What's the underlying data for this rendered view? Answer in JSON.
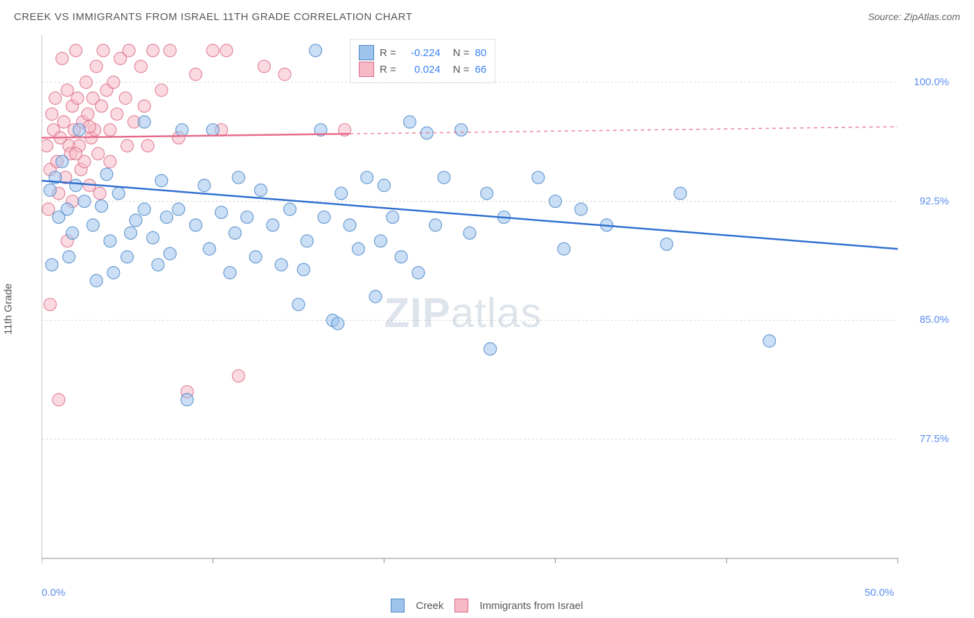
{
  "title": "CREEK VS IMMIGRANTS FROM ISRAEL 11TH GRADE CORRELATION CHART",
  "source_text": "Source: ZipAtlas.com",
  "ylabel": "11th Grade",
  "watermark": "ZIPatlas",
  "chart": {
    "type": "scatter",
    "xlim": [
      0,
      50
    ],
    "ylim": [
      70,
      103
    ],
    "x_tick_step": 10,
    "x_tick_labels": {
      "0": "0.0%",
      "50": "50.0%"
    },
    "y_ticks": [
      77.5,
      85.0,
      92.5,
      100.0
    ],
    "y_tick_labels": [
      "77.5%",
      "85.0%",
      "92.5%",
      "100.0%"
    ],
    "grid_color": "#d8d8d8",
    "axis_color": "#888888",
    "background_color": "#ffffff",
    "marker_radius": 9,
    "marker_opacity": 0.55,
    "series": [
      {
        "name": "Creek",
        "fill": "#9ec4ee",
        "stroke": "#4a84c4",
        "trend_color": "#2f6fd0",
        "trend_start_y": 93.8,
        "trend_end_y": 89.5,
        "trend_solid_until_x": 50,
        "legend": {
          "R": "-0.224",
          "N": "80"
        },
        "points": [
          [
            0.5,
            93.2
          ],
          [
            0.8,
            94.0
          ],
          [
            1.0,
            91.5
          ],
          [
            1.5,
            92.0
          ],
          [
            1.2,
            95.0
          ],
          [
            2.0,
            93.5
          ],
          [
            1.8,
            90.5
          ],
          [
            2.5,
            92.5
          ],
          [
            2.2,
            97.0
          ],
          [
            3.0,
            91.0
          ],
          [
            3.5,
            92.2
          ],
          [
            3.8,
            94.2
          ],
          [
            4.0,
            90.0
          ],
          [
            4.5,
            93.0
          ],
          [
            5.0,
            89.0
          ],
          [
            5.5,
            91.3
          ],
          [
            6.0,
            92.0
          ],
          [
            6.0,
            97.5
          ],
          [
            6.5,
            90.2
          ],
          [
            7.0,
            93.8
          ],
          [
            7.3,
            91.5
          ],
          [
            7.5,
            89.2
          ],
          [
            8.0,
            92.0
          ],
          [
            8.2,
            97.0
          ],
          [
            8.5,
            80.0
          ],
          [
            9.0,
            91.0
          ],
          [
            9.5,
            93.5
          ],
          [
            9.8,
            89.5
          ],
          [
            10.0,
            97.0
          ],
          [
            10.5,
            91.8
          ],
          [
            11.0,
            88.0
          ],
          [
            11.3,
            90.5
          ],
          [
            11.5,
            94.0
          ],
          [
            12.0,
            91.5
          ],
          [
            12.5,
            89.0
          ],
          [
            12.8,
            93.2
          ],
          [
            13.5,
            91.0
          ],
          [
            14.0,
            88.5
          ],
          [
            14.5,
            92.0
          ],
          [
            15.0,
            86.0
          ],
          [
            15.5,
            90.0
          ],
          [
            16.0,
            102.0
          ],
          [
            16.3,
            97.0
          ],
          [
            16.5,
            91.5
          ],
          [
            17.0,
            85.0
          ],
          [
            17.5,
            93.0
          ],
          [
            18.0,
            91.0
          ],
          [
            18.5,
            89.5
          ],
          [
            19.0,
            94.0
          ],
          [
            19.5,
            86.5
          ],
          [
            19.8,
            90.0
          ],
          [
            20.0,
            93.5
          ],
          [
            20.5,
            91.5
          ],
          [
            21.0,
            89.0
          ],
          [
            21.5,
            97.5
          ],
          [
            22.0,
            88.0
          ],
          [
            22.5,
            96.8
          ],
          [
            23.0,
            91.0
          ],
          [
            23.5,
            94.0
          ],
          [
            24.5,
            97.0
          ],
          [
            25.0,
            90.5
          ],
          [
            26.0,
            93.0
          ],
          [
            26.2,
            83.2
          ],
          [
            27.0,
            91.5
          ],
          [
            29.0,
            94.0
          ],
          [
            30.0,
            92.5
          ],
          [
            30.5,
            89.5
          ],
          [
            31.5,
            92.0
          ],
          [
            33.0,
            91.0
          ],
          [
            36.5,
            89.8
          ],
          [
            37.3,
            93.0
          ],
          [
            42.5,
            83.7
          ],
          [
            0.6,
            88.5
          ],
          [
            1.6,
            89.0
          ],
          [
            3.2,
            87.5
          ],
          [
            4.2,
            88.0
          ],
          [
            5.2,
            90.5
          ],
          [
            6.8,
            88.5
          ],
          [
            15.3,
            88.2
          ],
          [
            17.3,
            84.8
          ]
        ]
      },
      {
        "name": "Immigrants from Israel",
        "fill": "#f7b9c6",
        "stroke": "#d96b87",
        "trend_color": "#e76b8a",
        "trend_start_y": 96.5,
        "trend_end_y": 97.2,
        "trend_solid_until_x": 18,
        "legend": {
          "R": "0.024",
          "N": "66"
        },
        "points": [
          [
            0.3,
            96.0
          ],
          [
            0.4,
            92.0
          ],
          [
            0.5,
            94.5
          ],
          [
            0.6,
            98.0
          ],
          [
            0.7,
            97.0
          ],
          [
            0.8,
            99.0
          ],
          [
            0.9,
            95.0
          ],
          [
            1.0,
            93.0
          ],
          [
            1.1,
            96.5
          ],
          [
            1.2,
            101.5
          ],
          [
            1.3,
            97.5
          ],
          [
            1.4,
            94.0
          ],
          [
            1.5,
            99.5
          ],
          [
            1.5,
            90.0
          ],
          [
            1.6,
            96.0
          ],
          [
            1.7,
            95.5
          ],
          [
            1.8,
            98.5
          ],
          [
            1.9,
            97.0
          ],
          [
            2.0,
            102.0
          ],
          [
            2.1,
            99.0
          ],
          [
            2.2,
            96.0
          ],
          [
            2.3,
            94.5
          ],
          [
            2.4,
            97.5
          ],
          [
            2.5,
            95.0
          ],
          [
            2.6,
            100.0
          ],
          [
            2.7,
            98.0
          ],
          [
            2.8,
            93.5
          ],
          [
            2.9,
            96.5
          ],
          [
            3.0,
            99.0
          ],
          [
            3.1,
            97.0
          ],
          [
            3.2,
            101.0
          ],
          [
            3.3,
            95.5
          ],
          [
            3.5,
            98.5
          ],
          [
            3.6,
            102.0
          ],
          [
            3.8,
            99.5
          ],
          [
            4.0,
            97.0
          ],
          [
            4.2,
            100.0
          ],
          [
            4.4,
            98.0
          ],
          [
            4.6,
            101.5
          ],
          [
            4.9,
            99.0
          ],
          [
            5.1,
            102.0
          ],
          [
            5.4,
            97.5
          ],
          [
            5.8,
            101.0
          ],
          [
            6.0,
            98.5
          ],
          [
            6.5,
            102.0
          ],
          [
            7.0,
            99.5
          ],
          [
            7.5,
            102.0
          ],
          [
            8.0,
            96.5
          ],
          [
            8.5,
            80.5
          ],
          [
            9.0,
            100.5
          ],
          [
            10.0,
            102.0
          ],
          [
            10.5,
            97.0
          ],
          [
            10.8,
            102.0
          ],
          [
            11.5,
            81.5
          ],
          [
            13.0,
            101.0
          ],
          [
            14.2,
            100.5
          ],
          [
            17.7,
            97.0
          ],
          [
            1.8,
            92.5
          ],
          [
            2.0,
            95.5
          ],
          [
            2.8,
            97.2
          ],
          [
            3.4,
            93.0
          ],
          [
            4.0,
            95.0
          ],
          [
            5.0,
            96.0
          ],
          [
            6.2,
            96.0
          ],
          [
            1.0,
            80.0
          ],
          [
            0.5,
            86.0
          ]
        ]
      }
    ]
  },
  "bottom_legend": [
    {
      "label": "Creek",
      "fill": "#9ec4ee",
      "stroke": "#4a84c4"
    },
    {
      "label": "Immigrants from Israel",
      "fill": "#f7b9c6",
      "stroke": "#d96b87"
    }
  ]
}
